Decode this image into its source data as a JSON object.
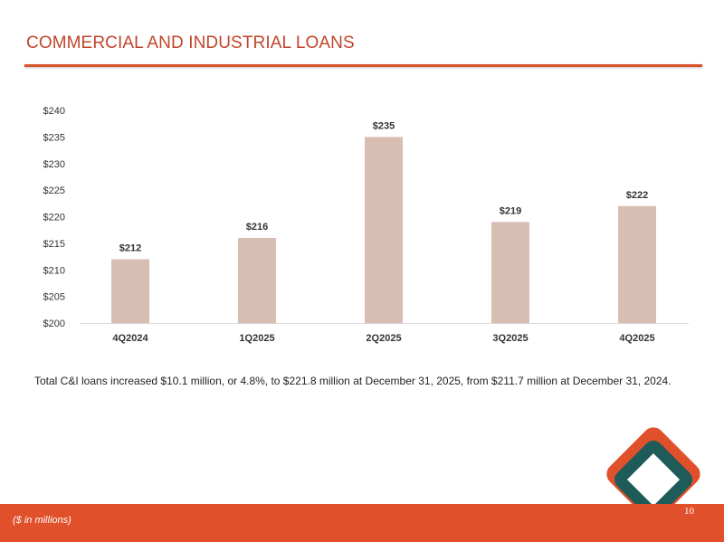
{
  "slide": {
    "title": "COMMERCIAL AND INDUSTRIAL LOANS",
    "summary": "Total C&I loans increased $10.1 million, or 4.8%, to $221.8 million at December 31, 2025, from $211.7 million at December 31, 2024.",
    "footnote": "($ in millions)",
    "page_number": "10"
  },
  "colors": {
    "accent": "#e0502a",
    "title": "#c0462b",
    "bar": "#d8bdb3",
    "logo_orange": "#e0502a",
    "logo_teal": "#1f5b59"
  },
  "chart_data": {
    "type": "bar",
    "title": "",
    "xlabel": "",
    "ylabel": "",
    "categories": [
      "4Q2024",
      "1Q2025",
      "2Q2025",
      "3Q2025",
      "4Q2025"
    ],
    "values": [
      212,
      216,
      235,
      219,
      222
    ],
    "data_labels": [
      "$212",
      "$216",
      "$235",
      "$219",
      "$222"
    ],
    "ylim": [
      200,
      240
    ],
    "yticks": [
      200,
      205,
      210,
      215,
      220,
      225,
      230,
      235,
      240
    ],
    "ytick_labels": [
      "$200",
      "$205",
      "$210",
      "$215",
      "$220",
      "$225",
      "$230",
      "$235",
      "$240"
    ],
    "grid": false,
    "legend": "none"
  }
}
